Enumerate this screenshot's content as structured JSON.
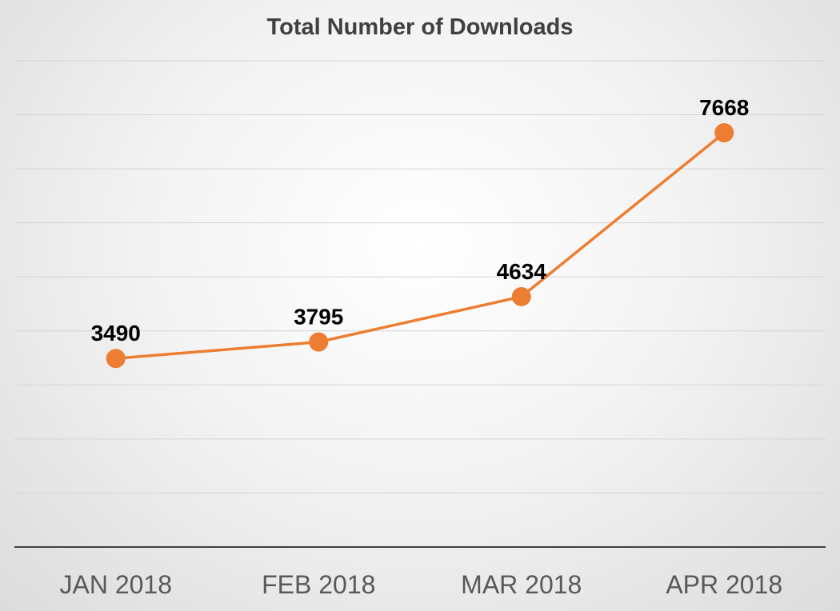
{
  "chart_data": {
    "type": "line",
    "title": "Total Number of Downloads",
    "categories": [
      "JAN 2018",
      "FEB 2018",
      "MAR 2018",
      "APR 2018"
    ],
    "series": [
      {
        "values": [
          3490,
          3795,
          4634,
          7668
        ],
        "color": "#ed7d31"
      }
    ],
    "ylim": [
      0,
      9000
    ],
    "grid": true,
    "data_labels": true,
    "legend": "none"
  }
}
